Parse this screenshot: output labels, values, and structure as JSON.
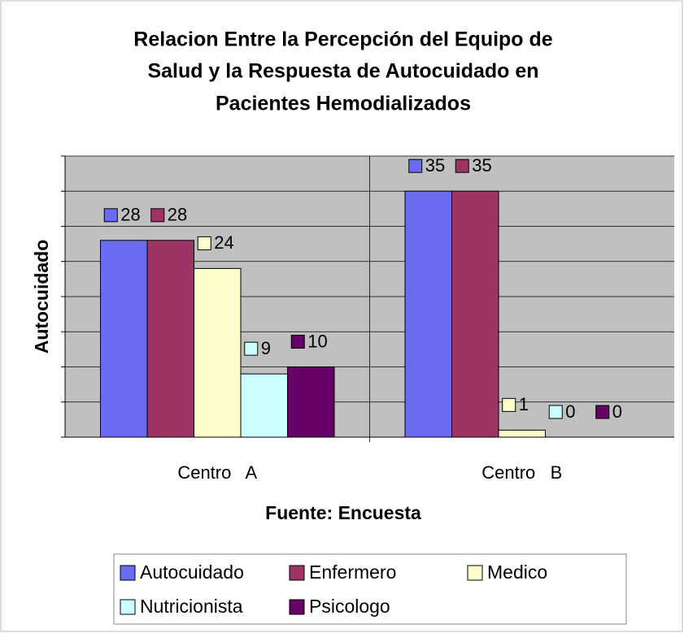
{
  "chart_data": {
    "type": "bar",
    "title": [
      "Relacion Entre la Percepción del Equipo de",
      "Salud y la Respuesta de Autocuidado en",
      "Pacientes Hemodializados"
    ],
    "x_label": "Fuente: Encuesta",
    "y_label": "Autocuidado",
    "categories": [
      "Centro   A",
      "Centro   B"
    ],
    "series": [
      {
        "name": "Autocuidado",
        "color": "#6b6bf2",
        "values": [
          28,
          35
        ]
      },
      {
        "name": "Enfermero",
        "color": "#9e3366",
        "values": [
          28,
          35
        ]
      },
      {
        "name": "Medico",
        "color": "#ffffcc",
        "values": [
          24,
          1
        ]
      },
      {
        "name": "Nutricionista",
        "color": "#ccffff",
        "values": [
          9,
          0
        ]
      },
      {
        "name": "Psicologo",
        "color": "#660066",
        "values": [
          10,
          0
        ]
      }
    ],
    "ylim": [
      0,
      40
    ],
    "yticks": [
      0,
      5,
      10,
      15,
      20,
      25,
      30,
      35,
      40
    ],
    "grid": true
  }
}
